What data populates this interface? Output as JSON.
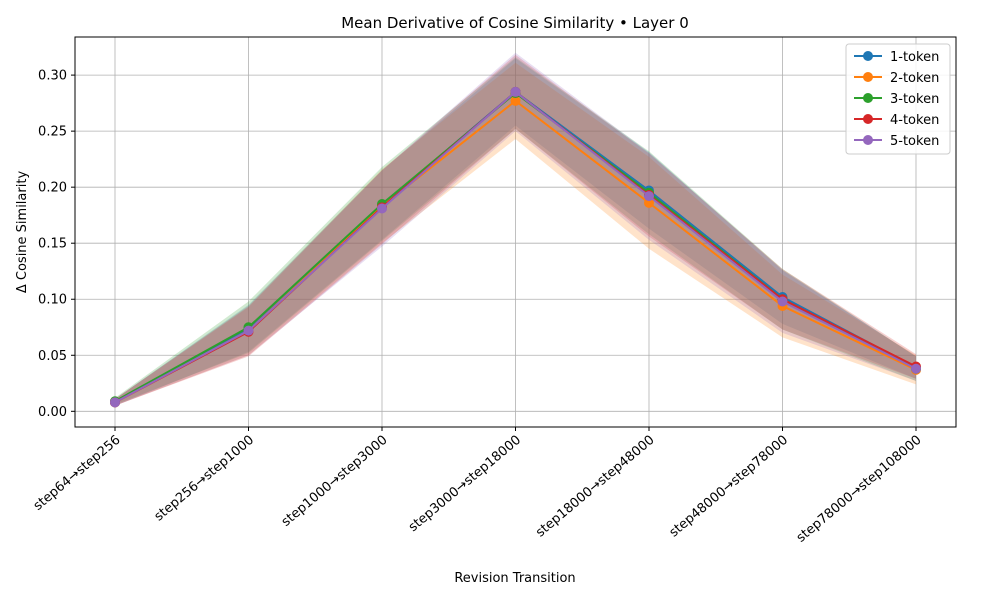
{
  "chart_data": {
    "type": "line",
    "title": "Mean Derivative of Cosine Similarity • Layer 0",
    "xlabel": "Revision Transition",
    "ylabel": "Δ Cosine Similarity",
    "categories": [
      "step64→step256",
      "step256→step1000",
      "step1000→step3000",
      "step3000→step18000",
      "step18000→step48000",
      "step48000→step78000",
      "step78000→step108000"
    ],
    "ylim": [
      -0.014,
      0.334
    ],
    "yticks": [
      0.0,
      0.05,
      0.1,
      0.15,
      0.2,
      0.25,
      0.3
    ],
    "ytick_labels": [
      "0.00",
      "0.05",
      "0.10",
      "0.15",
      "0.20",
      "0.25",
      "0.30"
    ],
    "grid": true,
    "legend_position": "top-right",
    "shaded_band": "mean ± spread",
    "series": [
      {
        "name": "1-token",
        "color": "#1f77b4",
        "values": [
          0.008,
          0.074,
          0.184,
          0.285,
          0.197,
          0.102,
          0.039
        ],
        "lower": [
          0.005,
          0.053,
          0.153,
          0.255,
          0.163,
          0.078,
          0.029
        ],
        "upper": [
          0.011,
          0.095,
          0.215,
          0.315,
          0.231,
          0.126,
          0.049
        ]
      },
      {
        "name": "2-token",
        "color": "#ff7f0e",
        "values": [
          0.008,
          0.072,
          0.183,
          0.277,
          0.186,
          0.094,
          0.037
        ],
        "lower": [
          0.005,
          0.05,
          0.15,
          0.243,
          0.145,
          0.066,
          0.024
        ],
        "upper": [
          0.011,
          0.094,
          0.216,
          0.311,
          0.227,
          0.122,
          0.05
        ]
      },
      {
        "name": "3-token",
        "color": "#2ca02c",
        "values": [
          0.009,
          0.075,
          0.185,
          0.284,
          0.195,
          0.1,
          0.038
        ],
        "lower": [
          0.006,
          0.052,
          0.152,
          0.252,
          0.158,
          0.073,
          0.027
        ],
        "upper": [
          0.012,
          0.098,
          0.218,
          0.316,
          0.232,
          0.127,
          0.049
        ]
      },
      {
        "name": "4-token",
        "color": "#d62728",
        "values": [
          0.008,
          0.071,
          0.182,
          0.285,
          0.193,
          0.1,
          0.04
        ],
        "lower": [
          0.005,
          0.049,
          0.149,
          0.252,
          0.156,
          0.073,
          0.029
        ],
        "upper": [
          0.011,
          0.093,
          0.215,
          0.318,
          0.23,
          0.127,
          0.051
        ]
      },
      {
        "name": "5-token",
        "color": "#9467bd",
        "values": [
          0.008,
          0.072,
          0.181,
          0.285,
          0.192,
          0.098,
          0.038
        ],
        "lower": [
          0.005,
          0.05,
          0.147,
          0.25,
          0.153,
          0.07,
          0.027
        ],
        "upper": [
          0.011,
          0.094,
          0.215,
          0.32,
          0.231,
          0.126,
          0.049
        ]
      }
    ]
  }
}
